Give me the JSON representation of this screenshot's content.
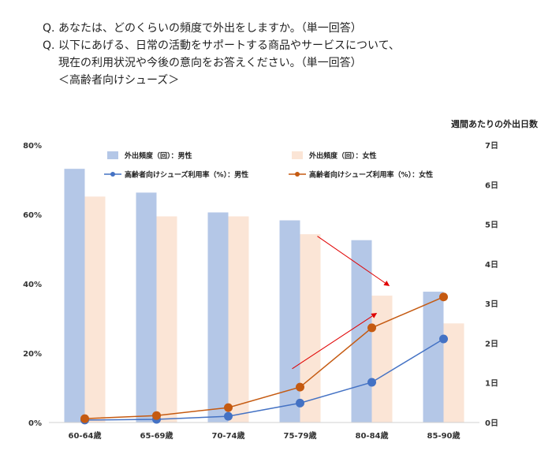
{
  "questions": {
    "q1_mark": "Q.",
    "q1_text": "あなたは、どのくらいの頻度で外出をしますか。（単一回答）",
    "q2_mark": "Q.",
    "q2_text": "以下にあげる、日常の活動をサポートする商品やサービスについて、",
    "q2_text2": "現在の利用状況や今後の意向をお答えください。（単一回答）",
    "q2_sub": "＜高齢者向けシューズ＞"
  },
  "chart_data": {
    "type": "bar",
    "categories": [
      "60-64歳",
      "65-69歳",
      "70-74歳",
      "75-79歳",
      "80-84歳",
      "85-90歳"
    ],
    "series": [
      {
        "name": "外出頻度（回）：男性",
        "kind": "bar",
        "axis": "right",
        "color": "#b4c7e7",
        "values": [
          6.4,
          5.8,
          5.3,
          5.1,
          4.6,
          3.3
        ]
      },
      {
        "name": "外出頻度（回）：女性",
        "kind": "bar",
        "axis": "right",
        "color": "#fbe5d6",
        "values": [
          5.7,
          5.2,
          5.2,
          4.75,
          3.2,
          2.5
        ]
      },
      {
        "name": "高齢者向けシューズ利用率（%）：男性",
        "kind": "line",
        "axis": "left",
        "color": "#4472c4",
        "values": [
          0.7,
          0.9,
          1.8,
          5.6,
          11.6,
          24.1
        ]
      },
      {
        "name": "高齢者向けシューズ利用率（%）：女性",
        "kind": "line",
        "axis": "left",
        "color": "#c55a11",
        "values": [
          1.1,
          2.0,
          4.3,
          10.2,
          27.3,
          36.2
        ]
      }
    ],
    "y_left": {
      "ticks": [
        "0%",
        "20%",
        "40%",
        "60%",
        "80%"
      ],
      "ylim": [
        0,
        80
      ]
    },
    "y_right": {
      "label": "週間あたりの外出日数",
      "ticks": [
        "0日",
        "1日",
        "2日",
        "3日",
        "4日",
        "5日",
        "6日",
        "7日"
      ],
      "ylim": [
        0,
        7
      ]
    },
    "annotations": [
      {
        "type": "arrow",
        "color": "#e00000",
        "from": {
          "category": "75-79歳",
          "value_right": 4.7
        },
        "to": {
          "category": "80-84歳",
          "value_right": 3.45
        }
      },
      {
        "type": "arrow",
        "color": "#e00000",
        "from": {
          "category": "75-79歳",
          "value_left": 15.5
        },
        "to": {
          "category": "80-84歳",
          "value_left": 31.5
        }
      }
    ],
    "grid": false,
    "legend_position": "top"
  }
}
